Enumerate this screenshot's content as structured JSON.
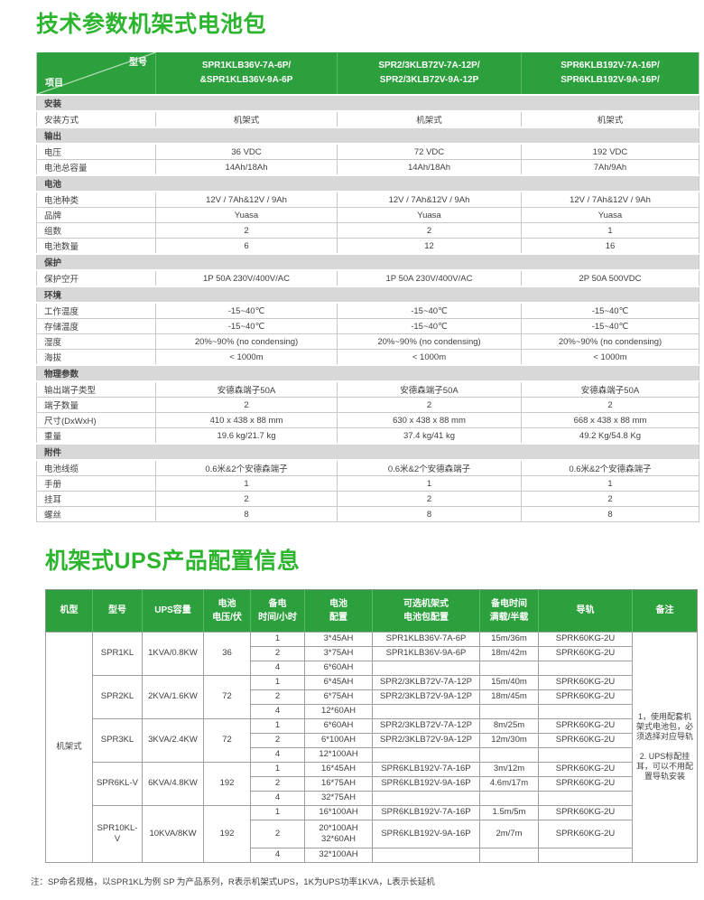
{
  "page": {
    "section1_title": "技术参数机架式电池包",
    "section2_title": "机架式UPS产品配置信息",
    "footnote": "注：SP命名规格，以SPR1KL为例 SP 为产品系列，R表示机架式UPS，1K为UPS功率1KVA，L表示长延机"
  },
  "colors": {
    "title_green": "#2db52f",
    "table_header_green": "#2ca03c",
    "section_row_gray": "#d8d8d8"
  },
  "spec_table": {
    "corner_top": "型号",
    "corner_bottom": "项目",
    "model_headers": [
      "SPR1KLB36V-7A-6P/\n&SPR1KLB36V-9A-6P",
      "SPR2/3KLB72V-7A-12P/\nSPR2/3KLB72V-9A-12P",
      "SPR6KLB192V-7A-16P/\nSPR6KLB192V-9A-16P/"
    ],
    "sections": [
      {
        "name": "安装",
        "rows": [
          {
            "label": "安装方式",
            "values": [
              "机架式",
              "机架式",
              "机架式"
            ]
          }
        ]
      },
      {
        "name": "输出",
        "rows": [
          {
            "label": "电压",
            "values": [
              "36 VDC",
              "72 VDC",
              "192 VDC"
            ]
          },
          {
            "label": "电池总容量",
            "values": [
              "14Ah/18Ah",
              "14Ah/18Ah",
              "7Ah/9Ah"
            ]
          }
        ]
      },
      {
        "name": "电池",
        "rows": [
          {
            "label": "电池种类",
            "values": [
              "12V / 7Ah&12V / 9Ah",
              "12V / 7Ah&12V / 9Ah",
              "12V / 7Ah&12V / 9Ah"
            ]
          },
          {
            "label": "品牌",
            "values": [
              "Yuasa",
              "Yuasa",
              "Yuasa"
            ]
          },
          {
            "label": "组数",
            "values": [
              "2",
              "2",
              "1"
            ]
          },
          {
            "label": "电池数量",
            "values": [
              "6",
              "12",
              "16"
            ]
          }
        ]
      },
      {
        "name": "保护",
        "rows": [
          {
            "label": "保护空开",
            "values": [
              "1P 50A 230V/400V/AC",
              "1P 50A 230V/400V/AC",
              "2P 50A 500VDC"
            ]
          }
        ]
      },
      {
        "name": "环境",
        "rows": [
          {
            "label": "工作温度",
            "values": [
              "-15~40℃",
              "-15~40℃",
              "-15~40℃"
            ]
          },
          {
            "label": "存储温度",
            "values": [
              "-15~40℃",
              "-15~40℃",
              "-15~40℃"
            ]
          },
          {
            "label": "湿度",
            "values": [
              "20%~90% (no condensing)",
              "20%~90% (no condensing)",
              "20%~90% (no condensing)"
            ]
          },
          {
            "label": "海拔",
            "values": [
              "< 1000m",
              "< 1000m",
              "< 1000m"
            ]
          }
        ]
      },
      {
        "name": "物理参数",
        "rows": [
          {
            "label": "输出端子类型",
            "values": [
              "安德森端子50A",
              "安德森端子50A",
              "安德森端子50A"
            ]
          },
          {
            "label": "端子数量",
            "values": [
              "2",
              "2",
              "2"
            ]
          },
          {
            "label": "尺寸(DxWxH)",
            "values": [
              "410 x 438 x 88 mm",
              "630 x 438 x 88 mm",
              "668 x 438 x 88 mm"
            ]
          },
          {
            "label": "重量",
            "values": [
              "19.6 kg/21.7 kg",
              "37.4 kg/41 kg",
              "49.2 Kg/54.8 Kg"
            ]
          }
        ]
      },
      {
        "name": "附件",
        "rows": [
          {
            "label": "电池线缆",
            "values": [
              "0.6米&2个安德森端子",
              "0.6米&2个安德森端子",
              "0.6米&2个安德森端子"
            ]
          },
          {
            "label": "手册",
            "values": [
              "1",
              "1",
              "1"
            ]
          },
          {
            "label": "挂耳",
            "values": [
              "2",
              "2",
              "2"
            ]
          },
          {
            "label": "螺丝",
            "values": [
              "8",
              "8",
              "8"
            ]
          }
        ]
      }
    ]
  },
  "config_table": {
    "headers": [
      "机型",
      "型号",
      "UPS容量",
      "电池\n电压/伏",
      "备电\n时间/小时",
      "电池\n配置",
      "可选机架式\n电池包配置",
      "备电时间\n满载/半载",
      "导轨",
      "备注"
    ],
    "machine_type": "机架式",
    "models": [
      {
        "model": "SPR1KL",
        "capacity": "1KVA/0.8KW",
        "voltage": "36",
        "rows": [
          {
            "hours": "1",
            "battery": "3*45AH",
            "pack": "SPR1KLB36V-7A-6P",
            "runtime": "15m/36m",
            "rail": "SPRK60KG-2U"
          },
          {
            "hours": "2",
            "battery": "3*75AH",
            "pack": "SPR1KLB36V-9A-6P",
            "runtime": "18m/42m",
            "rail": "SPRK60KG-2U"
          },
          {
            "hours": "4",
            "battery": "6*60AH",
            "pack": "",
            "runtime": "",
            "rail": ""
          }
        ]
      },
      {
        "model": "SPR2KL",
        "capacity": "2KVA/1.6KW",
        "voltage": "72",
        "rows": [
          {
            "hours": "1",
            "battery": "6*45AH",
            "pack": "SPR2/3KLB72V-7A-12P",
            "runtime": "15m/40m",
            "rail": "SPRK60KG-2U"
          },
          {
            "hours": "2",
            "battery": "6*75AH",
            "pack": "SPR2/3KLB72V-9A-12P",
            "runtime": "18m/45m",
            "rail": "SPRK60KG-2U"
          },
          {
            "hours": "4",
            "battery": "12*60AH",
            "pack": "",
            "runtime": "",
            "rail": ""
          }
        ]
      },
      {
        "model": "SPR3KL",
        "capacity": "3KVA/2.4KW",
        "voltage": "72",
        "rows": [
          {
            "hours": "1",
            "battery": "6*60AH",
            "pack": "SPR2/3KLB72V-7A-12P",
            "runtime": "8m/25m",
            "rail": "SPRK60KG-2U"
          },
          {
            "hours": "2",
            "battery": "6*100AH",
            "pack": "SPR2/3KLB72V-9A-12P",
            "runtime": "12m/30m",
            "rail": "SPRK60KG-2U"
          },
          {
            "hours": "4",
            "battery": "12*100AH",
            "pack": "",
            "runtime": "",
            "rail": ""
          }
        ]
      },
      {
        "model": "SPR6KL-V",
        "capacity": "6KVA/4.8KW",
        "voltage": "192",
        "rows": [
          {
            "hours": "1",
            "battery": "16*45AH",
            "pack": "SPR6KLB192V-7A-16P",
            "runtime": "3m/12m",
            "rail": "SPRK60KG-2U"
          },
          {
            "hours": "2",
            "battery": "16*75AH",
            "pack": "SPR6KLB192V-9A-16P",
            "runtime": "4.6m/17m",
            "rail": "SPRK60KG-2U"
          },
          {
            "hours": "4",
            "battery": "32*75AH",
            "pack": "",
            "runtime": "",
            "rail": ""
          }
        ]
      },
      {
        "model": "SPR10KL-V",
        "capacity": "10KVA/8KW",
        "voltage": "192",
        "rows": [
          {
            "hours": "1",
            "battery": "16*100AH",
            "pack": "SPR6KLB192V-7A-16P",
            "runtime": "1.5m/5m",
            "rail": "SPRK60KG-2U"
          },
          {
            "hours": "2",
            "battery": "20*100AH\n32*60AH",
            "pack": "SPR6KLB192V-9A-16P",
            "runtime": "2m/7m",
            "rail": "SPRK60KG-2U"
          },
          {
            "hours": "4",
            "battery": "32*100AH",
            "pack": "",
            "runtime": "",
            "rail": ""
          }
        ]
      }
    ],
    "notes": [
      "1，使用配套机架式电池包，必须选择对应导轨",
      "2. UPS标配挂耳，可以不用配置导轨安装"
    ]
  }
}
